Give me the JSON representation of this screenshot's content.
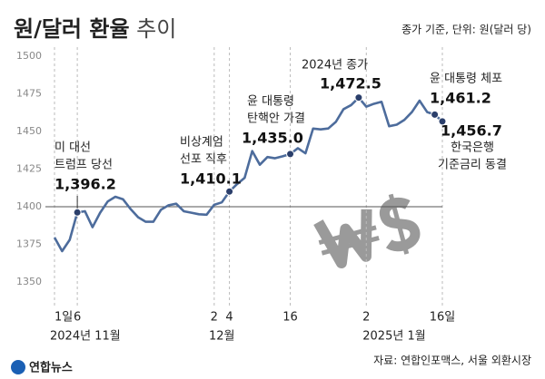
{
  "chart_data": {
    "type": "line",
    "title": "원/달러 환율",
    "title_light": "추이",
    "subtitle": "종가 기준, 단위: 원(달러 당)",
    "source": "자료: 연합인포맥스, 서울 외환시장",
    "logo": "연합뉴스",
    "categories": [
      "1일",
      null,
      null,
      "6",
      null,
      null,
      null,
      null,
      null,
      null,
      null,
      null,
      null,
      null,
      null,
      null,
      null,
      null,
      null,
      null,
      null,
      "2",
      null,
      "4",
      null,
      null,
      null,
      null,
      null,
      null,
      null,
      "16",
      null,
      null,
      null,
      null,
      null,
      null,
      null,
      null,
      null,
      "2",
      null,
      null,
      null,
      null,
      null,
      null,
      null,
      null,
      null,
      "16일"
    ],
    "month_labels": [
      "2024년 11월",
      "12월",
      "2025년 1월"
    ],
    "series": [
      {
        "name": "원/달러 환율",
        "color": "#4d6c9c",
        "values": [
          1379.6,
          1370.5,
          1378.0,
          1396.2,
          1397.0,
          1386.4,
          1396.0,
          1403.5,
          1406.6,
          1405.0,
          1398.5,
          1393.0,
          1390.0,
          1390.0,
          1398.0,
          1401.0,
          1402.0,
          1397.0,
          1396.0,
          1395.0,
          1394.7,
          1401.3,
          1402.9,
          1410.1,
          1415.0,
          1419.2,
          1437.0,
          1427.9,
          1433.0,
          1432.2,
          1433.5,
          1435.0,
          1438.9,
          1435.5,
          1451.9,
          1451.4,
          1452.0,
          1456.4,
          1464.8,
          1467.5,
          1472.5,
          1466.5,
          1468.4,
          1469.7,
          1453.5,
          1454.5,
          1457.7,
          1462.9,
          1470.5,
          1462.9,
          1461.2,
          1456.7
        ],
        "value_labels": [
          null,
          null,
          null,
          "1,396.2",
          null,
          null,
          null,
          null,
          null,
          null,
          null,
          null,
          null,
          null,
          null,
          null,
          null,
          null,
          null,
          null,
          null,
          null,
          null,
          "1,410.1",
          null,
          null,
          null,
          null,
          null,
          null,
          null,
          "1,435.0",
          null,
          null,
          null,
          null,
          null,
          null,
          null,
          null,
          "1,472.5",
          null,
          null,
          null,
          null,
          null,
          null,
          null,
          null,
          null,
          "1,461.2",
          "1,456.7"
        ],
        "annotations": [
          null,
          null,
          null,
          [
            "미 대선",
            "트럼프 당선"
          ],
          null,
          null,
          null,
          null,
          null,
          null,
          null,
          null,
          null,
          null,
          null,
          null,
          null,
          null,
          null,
          null,
          null,
          null,
          null,
          [
            "비상계엄",
            "선포 직후"
          ],
          null,
          null,
          null,
          null,
          null,
          null,
          null,
          [
            "윤 대통령",
            "탄핵안 가결"
          ],
          null,
          null,
          null,
          null,
          null,
          null,
          null,
          null,
          [
            "2024년 종가"
          ],
          null,
          null,
          null,
          null,
          null,
          null,
          null,
          null,
          null,
          [
            "윤 대통령 체포"
          ],
          [
            "한국은행",
            "기준금리 동결"
          ]
        ]
      }
    ],
    "marker_color": "#2b3f6b",
    "ylim": [
      1350,
      1500
    ],
    "yticks": [
      1350,
      1375,
      1400,
      1425,
      1450,
      1475,
      1500
    ],
    "reference_line": 1400,
    "grid": false
  }
}
